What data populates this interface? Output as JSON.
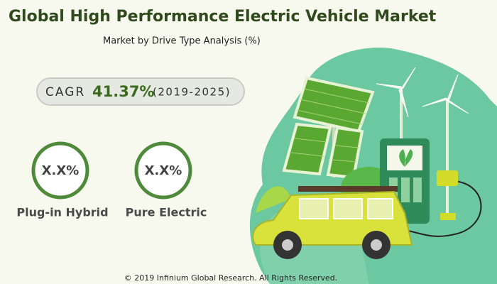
{
  "header": {
    "title": "Global High Performance Electric Vehicle Market",
    "subtitle": "Market by Drive Type Analysis (%)"
  },
  "cagr": {
    "label": "CAGR",
    "value": "41.37%",
    "period": "(2019-2025)"
  },
  "segments": [
    {
      "value": "X.X%",
      "label": "Plug-in Hybrid"
    },
    {
      "value": "X.X%",
      "label": "Pure Electric"
    }
  ],
  "footer": "© 2019 Infinium Global Research. All Rights Reserved."
}
